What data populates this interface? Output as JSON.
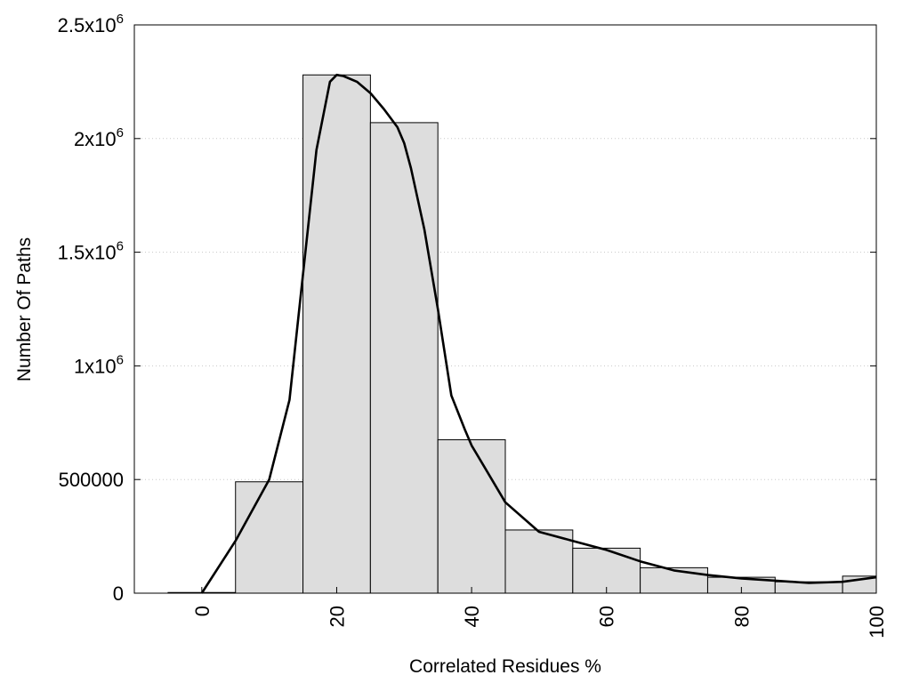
{
  "chart_data": {
    "type": "bar",
    "title": "",
    "xlabel": "Correlated Residues %",
    "ylabel": "Number Of Paths",
    "xlim": [
      -10,
      100
    ],
    "ylim": [
      0,
      2500000
    ],
    "bar_width": 10,
    "x_ticks": [
      {
        "value": 0,
        "label": "0"
      },
      {
        "value": 20,
        "label": "20"
      },
      {
        "value": 40,
        "label": "40"
      },
      {
        "value": 60,
        "label": "60"
      },
      {
        "value": 80,
        "label": "80"
      },
      {
        "value": 100,
        "label": "100"
      }
    ],
    "y_ticks": [
      {
        "value": 0,
        "base": "0",
        "exp": ""
      },
      {
        "value": 500000,
        "base": "500000",
        "exp": ""
      },
      {
        "value": 1000000,
        "base": "1x10",
        "exp": "6"
      },
      {
        "value": 1500000,
        "base": "1.5x10",
        "exp": "6"
      },
      {
        "value": 2000000,
        "base": "2x10",
        "exp": "6"
      },
      {
        "value": 2500000,
        "base": "2.5x10",
        "exp": "6"
      }
    ],
    "grid": {
      "y": true,
      "x": false,
      "style": "dotted"
    },
    "bars": {
      "x": [
        0,
        10,
        20,
        30,
        40,
        50,
        60,
        70,
        80,
        90,
        100
      ],
      "values": [
        3000,
        490000,
        2280000,
        2070000,
        675000,
        278000,
        198000,
        112000,
        70000,
        50000,
        75000
      ],
      "color": "#dddddd"
    },
    "curve": {
      "type": "line",
      "color": "#000000",
      "x": [
        0,
        5,
        10,
        13,
        15,
        17,
        19,
        20,
        21,
        23,
        25,
        27,
        29,
        30,
        31,
        33,
        35,
        37,
        39,
        40,
        42,
        45,
        50,
        55,
        60,
        65,
        70,
        75,
        80,
        85,
        90,
        95,
        100
      ],
      "y": [
        0,
        230000,
        500000,
        850000,
        1400000,
        1950000,
        2250000,
        2280000,
        2275000,
        2250000,
        2200000,
        2130000,
        2050000,
        1980000,
        1870000,
        1600000,
        1250000,
        870000,
        720000,
        650000,
        550000,
        400000,
        270000,
        230000,
        190000,
        140000,
        100000,
        80000,
        65000,
        55000,
        45000,
        50000,
        70000
      ]
    }
  }
}
